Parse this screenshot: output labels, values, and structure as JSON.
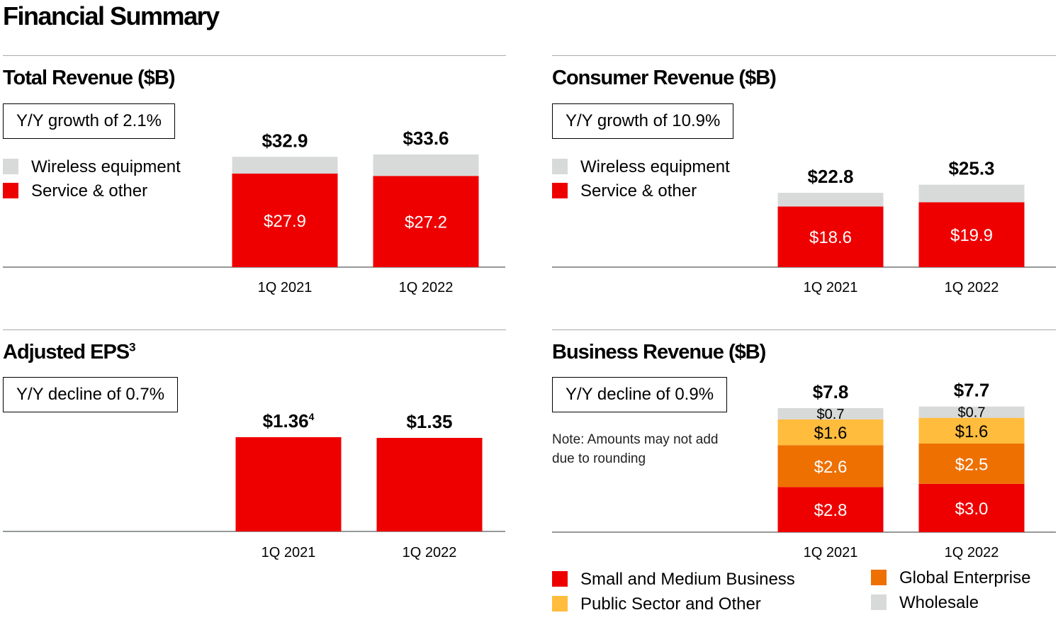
{
  "page": {
    "title": "Financial Summary"
  },
  "colors": {
    "red": "#ee0000",
    "gray": "#d8dada",
    "orange": "#ed7000",
    "yellow": "#ffbc3d",
    "axis": "#747676"
  },
  "legends": {
    "wireless": "Wireless equipment",
    "service": "Service & other",
    "business": {
      "small_medium": "Small and Medium Business",
      "public_sector": "Public Sector and Other",
      "global_enterprise": "Global Enterprise",
      "wholesale": "Wholesale"
    }
  },
  "panels": {
    "total_revenue": {
      "title": "Total Revenue ($B)",
      "callout": "Y/Y growth of 2.1%"
    },
    "consumer_revenue": {
      "title": "Consumer Revenue ($B)",
      "callout": "Y/Y growth of 10.9%"
    },
    "adjusted_eps": {
      "title": "Adjusted EPS",
      "title_sup": "3",
      "callout": "Y/Y decline of 0.7%"
    },
    "business_revenue": {
      "title": "Business Revenue ($B)",
      "callout": "Y/Y decline of 0.9%",
      "note": "Note: Amounts may not add due to rounding"
    }
  },
  "chart_data": [
    {
      "id": "total_revenue",
      "type": "bar",
      "stacked": true,
      "title": "Total Revenue ($B)",
      "categories": [
        "1Q 2021",
        "1Q 2022"
      ],
      "series": [
        {
          "name": "Service & other",
          "values": [
            27.9,
            27.2
          ],
          "labels": [
            "$27.9",
            "$27.2"
          ],
          "color": "#ee0000"
        },
        {
          "name": "Wireless equipment",
          "values": [
            5.0,
            6.4
          ],
          "labels": [
            "",
            ""
          ],
          "color": "#d8dada"
        }
      ],
      "totals": [
        32.9,
        33.6
      ],
      "total_labels": [
        "$32.9",
        "$33.6"
      ],
      "ylim": [
        0,
        33.6
      ],
      "grid": false
    },
    {
      "id": "consumer_revenue",
      "type": "bar",
      "stacked": true,
      "title": "Consumer Revenue ($B)",
      "categories": [
        "1Q 2021",
        "1Q 2022"
      ],
      "series": [
        {
          "name": "Service & other",
          "values": [
            18.6,
            19.9
          ],
          "labels": [
            "$18.6",
            "$19.9"
          ],
          "color": "#ee0000"
        },
        {
          "name": "Wireless equipment",
          "values": [
            4.2,
            5.4
          ],
          "labels": [
            "",
            ""
          ],
          "color": "#d8dada"
        }
      ],
      "totals": [
        22.8,
        25.3
      ],
      "total_labels": [
        "$22.8",
        "$25.3"
      ],
      "ylim": [
        0,
        30.0
      ],
      "grid": false
    },
    {
      "id": "adjusted_eps",
      "type": "bar",
      "title": "Adjusted EPS",
      "categories": [
        "1Q 2021",
        "1Q 2022"
      ],
      "series": [
        {
          "values": [
            1.36,
            1.35
          ],
          "labels": [
            "",
            ""
          ],
          "color": "#ee0000"
        }
      ],
      "totals": [
        1.36,
        1.35
      ],
      "total_labels": [
        "$1.36",
        "$1.35"
      ],
      "total_label_sups": [
        "4",
        ""
      ],
      "ylim": [
        0,
        1.36
      ],
      "grid": false
    },
    {
      "id": "business_revenue",
      "type": "bar",
      "stacked": true,
      "title": "Business Revenue ($B)",
      "categories": [
        "1Q 2021",
        "1Q 2022"
      ],
      "series": [
        {
          "name": "Small and Medium Business",
          "values": [
            2.8,
            3.0
          ],
          "labels": [
            "$2.8",
            "$3.0"
          ],
          "color": "#ee0000",
          "label_color": "#ffffff"
        },
        {
          "name": "Global Enterprise",
          "values": [
            2.6,
            2.5
          ],
          "labels": [
            "$2.6",
            "$2.5"
          ],
          "color": "#ed7000",
          "label_color": "#ffffff"
        },
        {
          "name": "Public Sector and Other",
          "values": [
            1.6,
            1.6
          ],
          "labels": [
            "$1.6",
            "$1.6"
          ],
          "color": "#ffbc3d",
          "label_color": "#000000"
        },
        {
          "name": "Wholesale",
          "values": [
            0.7,
            0.7
          ],
          "labels": [
            "$0.7",
            "$0.7"
          ],
          "color": "#d8dada",
          "label_color": "#000000"
        }
      ],
      "totals": [
        7.8,
        7.7
      ],
      "total_labels": [
        "$7.8",
        "$7.7"
      ],
      "ylim": [
        0,
        7.7
      ],
      "grid": false
    }
  ]
}
